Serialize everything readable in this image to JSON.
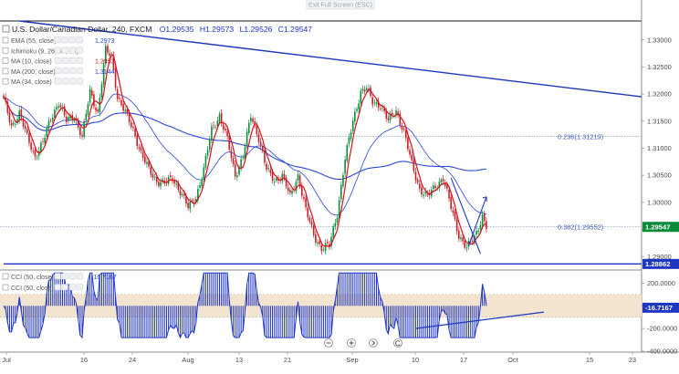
{
  "header": {
    "exit_button": "Exit Full Screen (ESC)",
    "legend": {
      "symbol": "U.S. Dollar/Canadian Dollar",
      "interval": "240",
      "exchange": "FXCM",
      "open": "O1.29535",
      "high": "H1.29573",
      "low": "L1.29526",
      "close": "C1.29547"
    },
    "indicators": [
      {
        "label": "EMA (55, close)",
        "value": "1.2973",
        "color": "#1f3fcc"
      },
      {
        "label": "Ichimoku (9, 26, 52, 26)",
        "value": "",
        "color": "#7a8aa0"
      },
      {
        "label": "MA (10, close)",
        "value": "1.2953",
        "color": "#d4111b"
      },
      {
        "label": "MA (200, close)",
        "value": "1.3144",
        "color": "#1f3fcc"
      },
      {
        "label": "MA (34, close)",
        "value": "",
        "color": "#7a8aa0"
      }
    ]
  },
  "price_axis": {
    "ticks": [
      "1.33000",
      "1.32500",
      "1.32000",
      "1.31500",
      "1.31000",
      "1.30500",
      "1.30000",
      "1.29500",
      "1.29000"
    ],
    "last_price_tag": "1.29547",
    "support_tag": "1.28862"
  },
  "fib_levels": [
    {
      "label": "0.236(1.31219)",
      "value": 1.31219
    },
    {
      "label": "0.382(1.29552)",
      "value": 1.29552
    }
  ],
  "cci_panel": {
    "label1": {
      "text": "CCI (50, close)",
      "value": "-16.7167",
      "color": "#1f3fcc"
    },
    "label2": {
      "text": "CCI (50, close)",
      "value": "",
      "color": "#7a8aa0"
    },
    "ticks": [
      "200.0000",
      "0.0000",
      "-200.0000",
      "-400.0000"
    ]
  },
  "date_axis": {
    "labels": [
      "Jul",
      "16",
      "24",
      "Aug",
      "13",
      "21",
      "Sep",
      "10",
      "17",
      "Oct",
      "15",
      "23"
    ]
  },
  "toolbar": {
    "icons": [
      "minus-icon",
      "plus-icon",
      "reset-icon"
    ]
  },
  "colors": {
    "up_candle": "#0a8f3c",
    "down_candle": "#c8202a",
    "trendline": "#1f36c2",
    "fib_line": "#8fa0c8",
    "ma10": "#d4111b",
    "ema55": "#2b46d6",
    "ma200": "#2b46d6",
    "cci": "#1f36c2",
    "cci_band": "#f3e4cf"
  },
  "chart_data": {
    "type": "candlestick",
    "title": "U.S. Dollar/Canadian Dollar, 240, FXCM",
    "xlabel": "",
    "ylabel": "",
    "ylim": [
      1.2875,
      1.3335
    ],
    "anchors": [
      [
        0,
        1.319
      ],
      [
        4,
        1.314
      ],
      [
        8,
        1.3165
      ],
      [
        12,
        1.312
      ],
      [
        16,
        1.3085
      ],
      [
        20,
        1.311
      ],
      [
        24,
        1.3155
      ],
      [
        28,
        1.3185
      ],
      [
        32,
        1.315
      ],
      [
        36,
        1.316
      ],
      [
        40,
        1.312
      ],
      [
        44,
        1.3205
      ],
      [
        48,
        1.3165
      ],
      [
        52,
        1.328
      ],
      [
        55,
        1.327
      ],
      [
        58,
        1.3195
      ],
      [
        62,
        1.3165
      ],
      [
        66,
        1.3135
      ],
      [
        70,
        1.309
      ],
      [
        74,
        1.306
      ],
      [
        78,
        1.304
      ],
      [
        82,
        1.3035
      ],
      [
        86,
        1.3045
      ],
      [
        90,
        1.302
      ],
      [
        94,
        1.299
      ],
      [
        98,
        1.301
      ],
      [
        102,
        1.306
      ],
      [
        106,
        1.3135
      ],
      [
        110,
        1.316
      ],
      [
        114,
        1.3115
      ],
      [
        118,
        1.305
      ],
      [
        122,
        1.3085
      ],
      [
        126,
        1.316
      ],
      [
        130,
        1.312
      ],
      [
        134,
        1.306
      ],
      [
        138,
        1.304
      ],
      [
        142,
        1.305
      ],
      [
        146,
        1.301
      ],
      [
        150,
        1.305
      ],
      [
        154,
        1.2985
      ],
      [
        158,
        1.294
      ],
      [
        162,
        1.2915
      ],
      [
        166,
        1.292
      ],
      [
        170,
        1.298
      ],
      [
        174,
        1.308
      ],
      [
        178,
        1.315
      ],
      [
        182,
        1.3205
      ],
      [
        185,
        1.321
      ],
      [
        188,
        1.3185
      ],
      [
        192,
        1.318
      ],
      [
        196,
        1.315
      ],
      [
        200,
        1.317
      ],
      [
        204,
        1.313
      ],
      [
        208,
        1.307
      ],
      [
        212,
        1.3025
      ],
      [
        216,
        1.301
      ],
      [
        220,
        1.303
      ],
      [
        224,
        1.3045
      ],
      [
        228,
        1.299
      ],
      [
        232,
        1.294
      ],
      [
        236,
        1.2915
      ],
      [
        240,
        1.2935
      ],
      [
        244,
        1.2975
      ],
      [
        246,
        1.2955
      ]
    ],
    "trendlines": [
      {
        "name": "resistance",
        "from": [
          8,
          1.3335
        ],
        "to": [
          360,
          1.3195
        ]
      },
      {
        "name": "support",
        "from": [
          0,
          1.28862
        ],
        "to": [
          360,
          1.28862
        ]
      }
    ],
    "cci_range": [
      -400,
      300
    ],
    "cci_band": [
      -100,
      100
    ]
  }
}
